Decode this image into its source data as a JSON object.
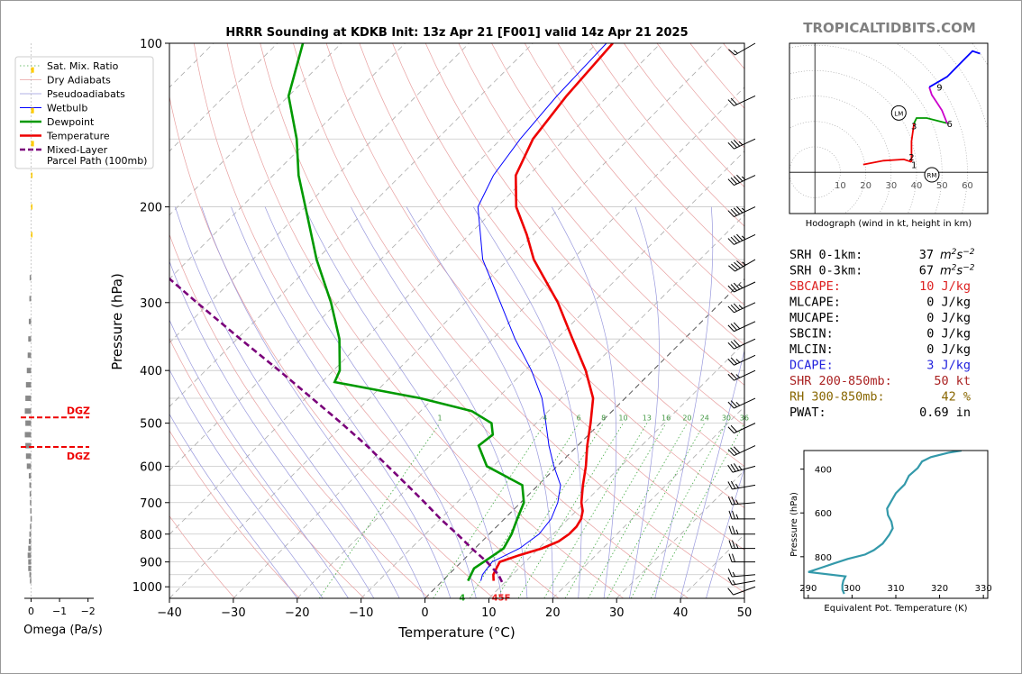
{
  "chart_data": [
    {
      "type": "line",
      "title": "HRRR Sounding at KDKB Init: 13z Apr 21 [F001] valid 14z Apr 21 2025",
      "xlabel": "Temperature (°C)",
      "ylabel": "Pressure (hPa)",
      "xlim": [
        -40,
        50
      ],
      "ylim": [
        1050,
        100
      ],
      "y_scale": "log",
      "skew": "45 degrees",
      "x_ticks": [
        "−40",
        "−30",
        "−20",
        "−10",
        "0",
        "10",
        "20",
        "30",
        "40",
        "50"
      ],
      "y_ticks": [
        "100",
        "200",
        "300",
        "400",
        "500",
        "600",
        "700",
        "800",
        "900",
        "1000"
      ],
      "legend": {
        "position": "top-left",
        "entries": [
          "Sat. Mix. Ratio",
          "Dry Adiabats",
          "Pseudoadiabats",
          "Wetbulb",
          "Dewpoint",
          "Temperature",
          "Mixed-Layer\nParcel Path (100mb)"
        ]
      },
      "mixing_ratio_labels": [
        "1",
        "4",
        "6",
        "8",
        "10",
        "13",
        "16",
        "20",
        "24",
        "30",
        "36"
      ],
      "surface_label": "45F",
      "surface_dewpoint_label": "4",
      "series": [
        {
          "name": "Temperature",
          "color": "#ee0000",
          "points": [
            [
              975,
              8.0
            ],
            [
              950,
              7.0
            ],
            [
              925,
              6.5
            ],
            [
              900,
              6.0
            ],
            [
              875,
              8.0
            ],
            [
              850,
              10.5
            ],
            [
              825,
              12.0
            ],
            [
              800,
              12.5
            ],
            [
              775,
              12.5
            ],
            [
              750,
              12.0
            ],
            [
              725,
              11.0
            ],
            [
              700,
              9.5
            ],
            [
              650,
              7.0
            ],
            [
              600,
              4.5
            ],
            [
              550,
              1.5
            ],
            [
              500,
              -1.5
            ],
            [
              450,
              -5.0
            ],
            [
              400,
              -10.5
            ],
            [
              350,
              -17.5
            ],
            [
              300,
              -25.5
            ],
            [
              250,
              -36.0
            ],
            [
              225,
              -41.0
            ],
            [
              200,
              -47.0
            ],
            [
              175,
              -52.0
            ],
            [
              150,
              -55.0
            ],
            [
              125,
              -56.5
            ],
            [
              100,
              -57.5
            ]
          ]
        },
        {
          "name": "Dewpoint",
          "color": "#009900",
          "points": [
            [
              975,
              4.0
            ],
            [
              950,
              3.5
            ],
            [
              925,
              3.0
            ],
            [
              900,
              3.5
            ],
            [
              875,
              4.0
            ],
            [
              850,
              4.5
            ],
            [
              800,
              3.5
            ],
            [
              750,
              2.0
            ],
            [
              700,
              0.5
            ],
            [
              650,
              -2.5
            ],
            [
              600,
              -11.0
            ],
            [
              550,
              -15.5
            ],
            [
              525,
              -15.0
            ],
            [
              500,
              -17.0
            ],
            [
              475,
              -22.0
            ],
            [
              450,
              -32.0
            ],
            [
              420,
              -48.0
            ],
            [
              400,
              -49.0
            ],
            [
              350,
              -54.0
            ],
            [
              300,
              -61.0
            ],
            [
              250,
              -70.0
            ],
            [
              200,
              -80.0
            ],
            [
              175,
              -86.0
            ],
            [
              150,
              -92.0
            ],
            [
              125,
              -100.0
            ],
            [
              100,
              -106.0
            ]
          ]
        },
        {
          "name": "Wetbulb",
          "color": "#0000ff",
          "points": [
            [
              975,
              6.0
            ],
            [
              950,
              5.3
            ],
            [
              900,
              4.8
            ],
            [
              850,
              7.0
            ],
            [
              800,
              7.8
            ],
            [
              750,
              7.3
            ],
            [
              700,
              5.8
            ],
            [
              650,
              3.5
            ],
            [
              600,
              -0.5
            ],
            [
              550,
              -4.5
            ],
            [
              500,
              -8.5
            ],
            [
              450,
              -13.0
            ],
            [
              400,
              -19.0
            ],
            [
              350,
              -26.5
            ],
            [
              300,
              -34.5
            ],
            [
              250,
              -44.0
            ],
            [
              200,
              -53.0
            ],
            [
              175,
              -55.5
            ],
            [
              150,
              -57.0
            ],
            [
              125,
              -58.0
            ],
            [
              100,
              -58.5
            ]
          ]
        },
        {
          "name": "Mixed-Layer Parcel Path (100mb)",
          "color": "#7a007a",
          "points": [
            [
              980,
              9.5
            ],
            [
              950,
              7.8
            ],
            [
              900,
              4.0
            ],
            [
              850,
              -0.5
            ],
            [
              800,
              -5.0
            ],
            [
              750,
              -10.0
            ],
            [
              700,
              -15.0
            ],
            [
              650,
              -20.5
            ],
            [
              600,
              -26.5
            ],
            [
              550,
              -33.0
            ],
            [
              500,
              -40.5
            ],
            [
              450,
              -49.0
            ],
            [
              400,
              -58.5
            ],
            [
              350,
              -69.5
            ],
            [
              300,
              -82.0
            ],
            [
              250,
              -96.5
            ],
            [
              200,
              -113.5
            ]
          ]
        }
      ],
      "dgz": {
        "label": "DGZ",
        "levels_hpa": [
          488,
          553
        ]
      },
      "wind_barbs": [
        {
          "p": 1000,
          "dir": 250,
          "spd": 10
        },
        {
          "p": 975,
          "dir": 260,
          "spd": 15
        },
        {
          "p": 950,
          "dir": 265,
          "spd": 15
        },
        {
          "p": 900,
          "dir": 270,
          "spd": 20
        },
        {
          "p": 850,
          "dir": 270,
          "spd": 25
        },
        {
          "p": 800,
          "dir": 270,
          "spd": 25
        },
        {
          "p": 750,
          "dir": 270,
          "spd": 25
        },
        {
          "p": 700,
          "dir": 265,
          "spd": 25
        },
        {
          "p": 650,
          "dir": 260,
          "spd": 25
        },
        {
          "p": 600,
          "dir": 255,
          "spd": 35
        },
        {
          "p": 550,
          "dir": 245,
          "spd": 30
        },
        {
          "p": 500,
          "dir": 245,
          "spd": 20
        },
        {
          "p": 450,
          "dir": 245,
          "spd": 25
        },
        {
          "p": 400,
          "dir": 245,
          "spd": 25
        },
        {
          "p": 375,
          "dir": 245,
          "spd": 25
        },
        {
          "p": 350,
          "dir": 245,
          "spd": 30
        },
        {
          "p": 325,
          "dir": 245,
          "spd": 30
        },
        {
          "p": 300,
          "dir": 245,
          "spd": 35
        },
        {
          "p": 275,
          "dir": 245,
          "spd": 35
        },
        {
          "p": 250,
          "dir": 240,
          "spd": 45
        },
        {
          "p": 225,
          "dir": 245,
          "spd": 45
        },
        {
          "p": 200,
          "dir": 245,
          "spd": 45
        },
        {
          "p": 175,
          "dir": 245,
          "spd": 45
        },
        {
          "p": 150,
          "dir": 245,
          "spd": 35
        },
        {
          "p": 125,
          "dir": 245,
          "spd": 20
        },
        {
          "p": 100,
          "dir": 240,
          "spd": 15
        }
      ]
    },
    {
      "type": "line",
      "title": "Hodograph (wind in kt, height in km)",
      "xlim": [
        -10,
        68
      ],
      "ylim": [
        -16,
        50
      ],
      "ring_labels": [
        "10",
        "20",
        "30",
        "40",
        "50",
        "60"
      ],
      "segments": [
        {
          "color": "#ee0000",
          "points": [
            [
              19,
              3
            ],
            [
              27,
              4.5
            ],
            [
              35,
              5
            ],
            [
              38,
              4
            ]
          ]
        },
        {
          "color": "#ee0000",
          "points": [
            [
              38,
              4
            ],
            [
              38,
              12
            ],
            [
              39,
              19
            ]
          ]
        },
        {
          "color": "#009900",
          "points": [
            [
              39,
              19
            ],
            [
              40,
              21
            ],
            [
              44,
              21
            ],
            [
              52,
              19
            ]
          ]
        },
        {
          "color": "#cc00cc",
          "points": [
            [
              52,
              19
            ],
            [
              50,
              24
            ],
            [
              48,
              27
            ],
            [
              46,
              30
            ],
            [
              45,
              33
            ]
          ]
        },
        {
          "color": "#0000ff",
          "points": [
            [
              45,
              33
            ],
            [
              52,
              37
            ],
            [
              58,
              43
            ],
            [
              62,
              47
            ],
            [
              65,
              46
            ]
          ]
        }
      ],
      "height_labels": [
        {
          "text": "1",
          "x": 39,
          "y": 3
        },
        {
          "text": "2",
          "x": 38,
          "y": 6
        },
        {
          "text": "3",
          "x": 39,
          "y": 18
        },
        {
          "text": "6",
          "x": 53,
          "y": 19
        },
        {
          "text": "9",
          "x": 49,
          "y": 33
        }
      ],
      "storm_motion": [
        {
          "label": "LM",
          "x": 33,
          "y": 23
        },
        {
          "label": "RM",
          "x": 46,
          "y": -1
        }
      ]
    },
    {
      "type": "line",
      "xlabel": "Equivalent Pot. Temperature (K)",
      "ylabel": "Pressure (hPa)",
      "xlim": [
        289,
        331
      ],
      "ylim": [
        990,
        315
      ],
      "x_ticks": [
        "290",
        "300",
        "310",
        "320",
        "330"
      ],
      "y_ticks": [
        "400",
        "600",
        "800"
      ],
      "color": "#3399aa",
      "points": [
        [
          325,
          315
        ],
        [
          322,
          325
        ],
        [
          318,
          345
        ],
        [
          316,
          365
        ],
        [
          315,
          395
        ],
        [
          313,
          430
        ],
        [
          312,
          470
        ],
        [
          310,
          510
        ],
        [
          309,
          545
        ],
        [
          308,
          580
        ],
        [
          308.2,
          610
        ],
        [
          309,
          640
        ],
        [
          309.3,
          670
        ],
        [
          308.5,
          700
        ],
        [
          307,
          740
        ],
        [
          305,
          770
        ],
        [
          303,
          790
        ],
        [
          299,
          810
        ],
        [
          296,
          830
        ],
        [
          293,
          850
        ],
        [
          290,
          870
        ],
        [
          298.5,
          890
        ],
        [
          298,
          910
        ],
        [
          297.8,
          930
        ],
        [
          297.8,
          950
        ],
        [
          298.2,
          970
        ]
      ]
    },
    {
      "type": "bar",
      "xlabel": "Omega (Pa/s)",
      "xlim": [
        0.3,
        -2.2
      ],
      "x_ticks": [
        "0",
        "−1",
        "−2"
      ],
      "bars": [
        {
          "p": 112,
          "v": -0.1,
          "color": "#ffcc00"
        },
        {
          "p": 133,
          "v": -0.1,
          "color": "#ffcc00"
        },
        {
          "p": 153,
          "v": -0.1,
          "color": "#ffcc00"
        },
        {
          "p": 175,
          "v": -0.05,
          "color": "#ffcc00"
        },
        {
          "p": 200,
          "v": -0.05,
          "color": "#ffcc00"
        },
        {
          "p": 225,
          "v": -0.05,
          "color": "#ffcc00"
        },
        {
          "p": 270,
          "v": 0.05,
          "color": "#888888"
        },
        {
          "p": 295,
          "v": 0.06,
          "color": "#888888"
        },
        {
          "p": 325,
          "v": 0.08,
          "color": "#888888"
        },
        {
          "p": 350,
          "v": 0.1,
          "color": "#888888"
        },
        {
          "p": 375,
          "v": 0.12,
          "color": "#888888"
        },
        {
          "p": 400,
          "v": 0.15,
          "color": "#888888"
        },
        {
          "p": 425,
          "v": 0.18,
          "color": "#888888"
        },
        {
          "p": 450,
          "v": 0.2,
          "color": "#888888"
        },
        {
          "p": 475,
          "v": 0.22,
          "color": "#888888"
        },
        {
          "p": 500,
          "v": 0.2,
          "color": "#888888"
        },
        {
          "p": 525,
          "v": 0.22,
          "color": "#888888"
        },
        {
          "p": 550,
          "v": 0.2,
          "color": "#888888"
        },
        {
          "p": 575,
          "v": 0.18,
          "color": "#888888"
        },
        {
          "p": 600,
          "v": 0.15,
          "color": "#888888"
        },
        {
          "p": 625,
          "v": 0.08,
          "color": "#888888"
        },
        {
          "p": 650,
          "v": 0.06,
          "color": "#888888"
        },
        {
          "p": 675,
          "v": 0.05,
          "color": "#888888"
        },
        {
          "p": 700,
          "v": 0.04,
          "color": "#888888"
        },
        {
          "p": 725,
          "v": 0.03,
          "color": "#888888"
        },
        {
          "p": 750,
          "v": 0.02,
          "color": "#888888"
        },
        {
          "p": 775,
          "v": 0.04,
          "color": "#888888"
        },
        {
          "p": 800,
          "v": 0.06,
          "color": "#888888"
        },
        {
          "p": 825,
          "v": 0.08,
          "color": "#888888"
        },
        {
          "p": 850,
          "v": 0.1,
          "color": "#888888"
        },
        {
          "p": 875,
          "v": 0.12,
          "color": "#888888"
        },
        {
          "p": 900,
          "v": 0.1,
          "color": "#888888"
        },
        {
          "p": 925,
          "v": 0.1,
          "color": "#888888"
        },
        {
          "p": 950,
          "v": 0.06,
          "color": "#888888"
        },
        {
          "p": 975,
          "v": 0.04,
          "color": "#888888"
        }
      ]
    }
  ],
  "watermark": "TROPICALTIDBITS.COM",
  "indices": [
    {
      "label": "SRH 0-1km:",
      "value": "37",
      "unit": "m2s-2",
      "color": "#000000"
    },
    {
      "label": "SRH 0-3km:",
      "value": "67",
      "unit": "m2s-2",
      "color": "#000000"
    },
    {
      "label": "SBCAPE:",
      "value": "10 J/kg",
      "color": "#dd2222"
    },
    {
      "label": "MLCAPE:",
      "value": "0 J/kg",
      "color": "#000000"
    },
    {
      "label": "MUCAPE:",
      "value": "0 J/kg",
      "color": "#000000"
    },
    {
      "label": "SBCIN:",
      "value": "0 J/kg",
      "color": "#000000"
    },
    {
      "label": "MLCIN:",
      "value": "0 J/kg",
      "color": "#000000"
    },
    {
      "label": "DCAPE:",
      "value": "3 J/kg",
      "color": "#2222dd"
    },
    {
      "label": "SHR 200-850mb:",
      "value": "50 kt",
      "color": "#aa2222"
    },
    {
      "label": "RH 300-850mb:",
      "value": "42 %",
      "color": "#886600"
    },
    {
      "label": "PWAT:",
      "value": "0.69 in",
      "color": "#000000"
    }
  ]
}
